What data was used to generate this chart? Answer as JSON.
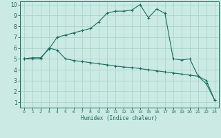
{
  "xlabel": "Humidex (Indice chaleur)",
  "xlim": [
    -0.5,
    23.5
  ],
  "ylim": [
    0.5,
    10.3
  ],
  "yticks": [
    1,
    2,
    3,
    4,
    5,
    6,
    7,
    8,
    9,
    10
  ],
  "xticks": [
    0,
    1,
    2,
    3,
    4,
    5,
    6,
    7,
    8,
    9,
    10,
    11,
    12,
    13,
    14,
    15,
    16,
    17,
    18,
    19,
    20,
    21,
    22,
    23
  ],
  "bg_color": "#cceae4",
  "line_color": "#1a6b5e",
  "grid_color": "#aad4cc",
  "line1_x": [
    0,
    1,
    2,
    3,
    4,
    5,
    6,
    7,
    8,
    9,
    10,
    11,
    12,
    13,
    14,
    15,
    16,
    17,
    18,
    19,
    20,
    21,
    22,
    23
  ],
  "line1_y": [
    5.0,
    5.1,
    5.1,
    5.9,
    7.0,
    7.2,
    7.4,
    7.6,
    7.8,
    8.4,
    9.2,
    9.4,
    9.4,
    9.5,
    10.0,
    8.8,
    9.6,
    9.2,
    5.0,
    4.9,
    5.0,
    3.4,
    2.7,
    1.2
  ],
  "line2_x": [
    0,
    1,
    2,
    3,
    4,
    5,
    6,
    7,
    8,
    9,
    10,
    11,
    12,
    13,
    14,
    15,
    16,
    17,
    18,
    19,
    20,
    21,
    22,
    23
  ],
  "line2_y": [
    5.0,
    5.0,
    5.0,
    6.0,
    5.8,
    5.0,
    4.85,
    4.75,
    4.65,
    4.55,
    4.45,
    4.35,
    4.25,
    4.2,
    4.1,
    4.0,
    3.9,
    3.8,
    3.7,
    3.6,
    3.5,
    3.4,
    3.0,
    1.2
  ]
}
